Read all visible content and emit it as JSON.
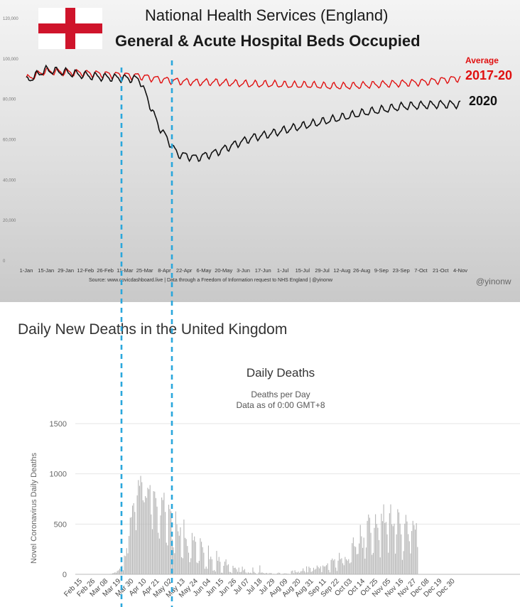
{
  "panels": {
    "top": {
      "title_line1": "National Health Services (England)",
      "title_line2": "General & Acute Hospital Beds Occupied",
      "average_label": "Average",
      "average_years": "2017-20",
      "label_2020": "2020",
      "source": "Source: www.covicdashboard.live | Data through a Freedom of Information request to NHS England | @yinonw",
      "handle": "@yinonw"
    },
    "bottom": {
      "header": "Daily New Deaths in the United Kingdom",
      "chart_title": "Daily Deaths",
      "subtitle": "Deaths per Day",
      "subtitle2": "Data as of 0:00 GMT+8",
      "ylabel": "Novel Coronavirus Daily Deaths"
    }
  },
  "colors": {
    "average_line": "#e01010",
    "line_2020": "#111111",
    "bars": "#b5b5b5",
    "guide_lines": "#2aa7dc",
    "flag_cross": "#cf142b"
  },
  "chart_data": [
    {
      "type": "line",
      "title": "General & Acute Hospital Beds Occupied",
      "x_ticks": [
        "1-Jan",
        "15-Jan",
        "29-Jan",
        "12-Feb",
        "26-Feb",
        "11-Mar",
        "25-Mar",
        "8-Apr",
        "22-Apr",
        "6-May",
        "20-May",
        "3-Jun",
        "17-Jun",
        "1-Jul",
        "15-Jul",
        "29-Jul",
        "12-Aug",
        "26-Aug",
        "9-Sep",
        "23-Sep",
        "7-Oct",
        "21-Oct",
        "4-Nov"
      ],
      "y_ticks": [
        "0",
        "20,000",
        "40,000",
        "60,000",
        "80,000",
        "100,000",
        "120,000"
      ],
      "ylim": [
        0,
        120000
      ],
      "grid": false,
      "series": [
        {
          "name": "Average 2017-20",
          "values": [
            90000,
            94000,
            93500,
            93000,
            92500,
            92000,
            91500,
            90000,
            89000,
            88500,
            88500,
            88000,
            87500,
            87500,
            87000,
            87000,
            86500,
            86500,
            87000,
            87500,
            88000,
            88500,
            89500,
            90500
          ]
        },
        {
          "name": "2020",
          "values": [
            89000,
            94500,
            93500,
            92000,
            91000,
            90500,
            90000,
            67000,
            53000,
            51000,
            53500,
            57500,
            61000,
            63000,
            65500,
            67500,
            69500,
            71500,
            73500,
            75000,
            76500,
            77000,
            77500,
            77500
          ]
        }
      ]
    },
    {
      "type": "bar",
      "title": "Daily Deaths",
      "subtitle": "Deaths per Day",
      "ylabel": "Novel Coronavirus Daily Deaths",
      "y_ticks": [
        "0",
        "500",
        "1000",
        "1500"
      ],
      "ylim": [
        0,
        1500
      ],
      "grid": true,
      "x_ticks": [
        "Feb 15",
        "Feb 26",
        "Mar 08",
        "Mar 19",
        "Mar 30",
        "Apr 10",
        "Apr 21",
        "May 02",
        "May 13",
        "May 24",
        "Jun 04",
        "Jun 15",
        "Jun 26",
        "Jul 07",
        "Jul 18",
        "Jul 29",
        "Aug 09",
        "Aug 20",
        "Aug 31",
        "Sep 11",
        "Sep 22",
        "Oct 03",
        "Oct 14",
        "Oct 25",
        "Nov 05",
        "Nov 16",
        "Nov 27",
        "Dec 08",
        "Dec 19",
        "Dec 30"
      ],
      "x_tick_spacing_days": 11,
      "start_date": "Feb 15",
      "values": [
        0,
        0,
        0,
        0,
        0,
        0,
        0,
        0,
        0,
        0,
        0,
        0,
        0,
        0,
        0,
        0,
        0,
        0,
        0,
        0,
        0,
        0,
        0,
        1,
        0,
        2,
        4,
        5,
        10,
        14,
        20,
        16,
        33,
        40,
        56,
        48,
        87,
        41,
        186,
        181,
        260,
        209,
        381,
        563,
        569,
        684,
        708,
        621,
        439,
        786,
        938,
        881,
        980,
        917,
        737,
        717,
        778,
        761,
        861,
        847,
        888,
        596,
        449,
        828,
        823,
        759,
        674,
        414,
        356,
        586,
        765,
        739,
        812,
        621,
        315,
        288,
        693,
        649,
        627,
        346,
        269,
        210,
        626,
        498,
        428,
        384,
        468,
        170,
        160,
        545,
        363,
        351,
        282,
        215,
        121,
        160,
        412,
        338,
        377,
        324,
        118,
        111,
        134,
        359,
        324,
        270,
        215,
        55,
        77,
        55,
        286,
        151,
        176,
        150,
        36,
        43,
        28,
        233,
        135,
        173,
        125,
        16,
        15,
        85,
        126,
        149,
        89,
        100,
        25,
        22,
        12,
        85,
        64,
        66,
        49,
        25,
        67,
        21,
        25,
        76,
        40,
        52,
        19,
        9,
        20,
        13,
        16,
        11,
        68,
        25,
        14,
        5,
        3,
        18,
        89,
        16,
        19,
        14,
        8,
        12,
        14,
        4,
        13,
        12,
        12,
        3,
        6,
        0,
        5,
        10,
        17,
        14,
        2,
        4,
        7,
        9,
        10,
        7,
        6,
        5,
        3,
        32,
        37,
        11,
        40,
        21,
        18,
        27,
        14,
        29,
        33,
        59,
        33,
        19,
        79,
        20,
        76,
        63,
        24,
        31,
        65,
        46,
        54,
        87,
        73,
        59,
        80,
        22,
        88,
        77,
        80,
        91,
        109,
        43,
        19,
        143,
        157,
        138,
        150,
        67,
        33,
        136,
        214,
        151,
        160,
        110,
        90,
        173,
        149,
        136,
        151,
        110,
        119,
        310,
        367,
        280,
        272,
        200,
        204,
        307,
        492,
        378,
        263,
        365,
        156,
        267,
        532,
        595,
        563,
        413,
        194,
        213,
        462,
        598,
        501,
        463,
        341,
        168,
        603,
        529,
        696,
        511,
        521,
        398,
        215,
        608,
        696,
        498,
        479,
        504,
        206,
        397,
        648,
        616,
        504,
        397,
        144,
        231,
        504,
        592,
        526,
        400,
        329,
        208,
        431,
        532,
        490,
        445,
        509,
        272
      ]
    }
  ]
}
